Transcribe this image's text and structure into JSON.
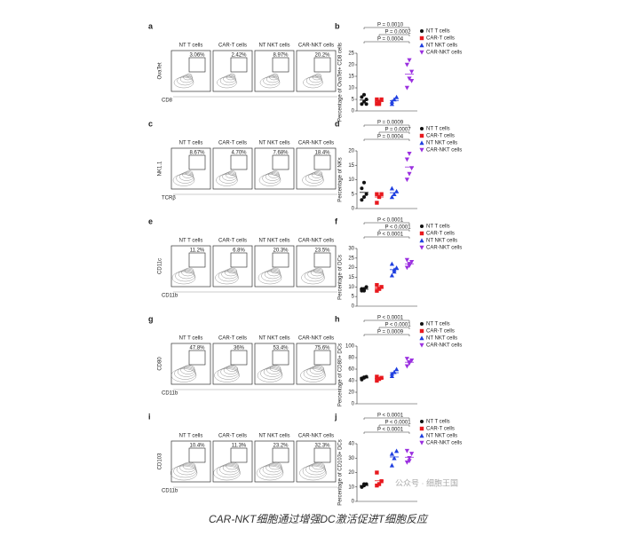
{
  "caption": "CAR-NKT细胞通过增强DC激活促进T细胞反应",
  "watermark": "公众号 · 细胞王国",
  "flow_panels": [
    {
      "letter": "a",
      "groups": [
        "NT T cells",
        "CAR-T cells",
        "NT NKT cells",
        "CAR-NKT cells"
      ],
      "percentages": [
        "3.06%",
        "2.42%",
        "8.97%",
        "20.2%"
      ],
      "y_label": "OvaTet",
      "x_label": "CD8"
    },
    {
      "letter": "c",
      "groups": [
        "NT T cells",
        "CAR-T cells",
        "NT NKT cells",
        "CAR-NKT cells"
      ],
      "percentages": [
        "8.67%",
        "4.70%",
        "7.68%",
        "18.4%"
      ],
      "y_label": "NK1.1",
      "x_label": "TCRβ"
    },
    {
      "letter": "e",
      "groups": [
        "NT T cells",
        "CAR-T cells",
        "NT NKT cells",
        "CAR-NKT cells"
      ],
      "percentages": [
        "11.2%",
        "6.8%",
        "20.3%",
        "23.5%"
      ],
      "y_label": "CD11c",
      "x_label": "CD11b"
    },
    {
      "letter": "g",
      "groups": [
        "NT T cells",
        "CAR-T cells",
        "NT NKT cells",
        "CAR-NKT cells"
      ],
      "percentages": [
        "47.8%",
        "36%",
        "53.4%",
        "75.6%"
      ],
      "y_label": "CD80",
      "x_label": "CD11b"
    },
    {
      "letter": "i",
      "groups": [
        "NT T cells",
        "CAR-T cells",
        "NT NKT cells",
        "CAR-NKT cells"
      ],
      "percentages": [
        "10.4%",
        "11.3%",
        "23.2%",
        "32.3%"
      ],
      "y_label": "CD103",
      "x_label": "CD11b"
    }
  ],
  "chart_data": [
    {
      "type": "scatter",
      "letter": "b",
      "y_label": "Percentage of OvaTet+ CD8 cells",
      "ylim": [
        0,
        25
      ],
      "yticks": [
        0,
        5,
        10,
        15,
        20,
        25
      ],
      "annotations": [
        "P = 0.0010",
        "P = 0.0002",
        "P = 0.0004"
      ],
      "series": [
        {
          "name": "NT T cells",
          "color": "#111111",
          "marker": "circle",
          "values": [
            3,
            4,
            5,
            6,
            7,
            3
          ],
          "mean": 4.7
        },
        {
          "name": "CAR-T cells",
          "color": "#e8191e",
          "marker": "square",
          "values": [
            3,
            4,
            5,
            5,
            3
          ],
          "mean": 4
        },
        {
          "name": "NT NKT cells",
          "color": "#1f3fe0",
          "marker": "triangle-up",
          "values": [
            3,
            5,
            6,
            4
          ],
          "mean": 4.5
        },
        {
          "name": "CAR-NKT cells",
          "color": "#9b30e0",
          "marker": "triangle-down",
          "values": [
            10,
            14,
            17,
            20,
            22,
            13
          ],
          "mean": 16
        }
      ]
    },
    {
      "type": "scatter",
      "letter": "d",
      "y_label": "Percentage of NKs",
      "ylim": [
        0,
        20
      ],
      "yticks": [
        0,
        5,
        10,
        15,
        20
      ],
      "annotations": [
        "P = 0.0009",
        "P = 0.0007",
        "P = 0.0004"
      ],
      "series": [
        {
          "name": "NT T cells",
          "color": "#111111",
          "marker": "circle",
          "values": [
            3,
            4,
            5,
            7,
            9
          ],
          "mean": 5.6
        },
        {
          "name": "CAR-T cells",
          "color": "#e8191e",
          "marker": "square",
          "values": [
            2,
            4,
            5,
            5
          ],
          "mean": 4
        },
        {
          "name": "NT NKT cells",
          "color": "#1f3fe0",
          "marker": "triangle-up",
          "values": [
            4,
            5,
            6,
            7
          ],
          "mean": 5.5
        },
        {
          "name": "CAR-NKT cells",
          "color": "#9b30e0",
          "marker": "triangle-down",
          "values": [
            10,
            12,
            14,
            17,
            19
          ],
          "mean": 14.4
        }
      ]
    },
    {
      "type": "scatter",
      "letter": "f",
      "y_label": "Percentage of DCs",
      "ylim": [
        0,
        30
      ],
      "yticks": [
        0,
        5,
        10,
        15,
        20,
        25,
        30
      ],
      "annotations": [
        "P < 0.0001",
        "P < 0.0001",
        "P < 0.0001"
      ],
      "series": [
        {
          "name": "NT T cells",
          "color": "#111111",
          "marker": "circle",
          "values": [
            8,
            9,
            10,
            9,
            8
          ],
          "mean": 8.8
        },
        {
          "name": "CAR-T cells",
          "color": "#e8191e",
          "marker": "square",
          "values": [
            8,
            9,
            10,
            11,
            9
          ],
          "mean": 9.4
        },
        {
          "name": "NT NKT cells",
          "color": "#1f3fe0",
          "marker": "triangle-up",
          "values": [
            16,
            18,
            20,
            22,
            19
          ],
          "mean": 19
        },
        {
          "name": "CAR-NKT cells",
          "color": "#9b30e0",
          "marker": "triangle-down",
          "values": [
            20,
            21,
            23,
            24,
            22
          ],
          "mean": 22
        }
      ]
    },
    {
      "type": "scatter",
      "letter": "h",
      "y_label": "Percentage of CD80+ DCs",
      "ylim": [
        0,
        100
      ],
      "yticks": [
        0,
        20,
        40,
        60,
        80,
        100
      ],
      "annotations": [
        "P < 0.0001",
        "P < 0.0001",
        "P = 0.0009"
      ],
      "series": [
        {
          "name": "NT T cells",
          "color": "#111111",
          "marker": "circle",
          "values": [
            42,
            45,
            47,
            44,
            46
          ],
          "mean": 44.8
        },
        {
          "name": "CAR-T cells",
          "color": "#e8191e",
          "marker": "square",
          "values": [
            40,
            43,
            45,
            47
          ],
          "mean": 43.8
        },
        {
          "name": "NT NKT cells",
          "color": "#1f3fe0",
          "marker": "triangle-up",
          "values": [
            48,
            55,
            60,
            52
          ],
          "mean": 53.8
        },
        {
          "name": "CAR-NKT cells",
          "color": "#9b30e0",
          "marker": "triangle-down",
          "values": [
            65,
            70,
            75,
            78,
            72
          ],
          "mean": 72
        }
      ]
    },
    {
      "type": "scatter",
      "letter": "j",
      "y_label": "Percentage of CD103+ DCs",
      "ylim": [
        0,
        40
      ],
      "yticks": [
        0,
        10,
        20,
        30,
        40
      ],
      "annotations": [
        "P < 0.0001",
        "P < 0.0001",
        "P < 0.0001"
      ],
      "series": [
        {
          "name": "NT T cells",
          "color": "#111111",
          "marker": "circle",
          "values": [
            10,
            11,
            12,
            10,
            12
          ],
          "mean": 11
        },
        {
          "name": "CAR-T cells",
          "color": "#e8191e",
          "marker": "square",
          "values": [
            11,
            12,
            14,
            20
          ],
          "mean": 14.3
        },
        {
          "name": "NT NKT cells",
          "color": "#1f3fe0",
          "marker": "triangle-up",
          "values": [
            25,
            30,
            35,
            33
          ],
          "mean": 30.8
        },
        {
          "name": "CAR-NKT cells",
          "color": "#9b30e0",
          "marker": "triangle-down",
          "values": [
            27,
            30,
            33,
            35,
            28
          ],
          "mean": 30.6
        }
      ]
    }
  ]
}
